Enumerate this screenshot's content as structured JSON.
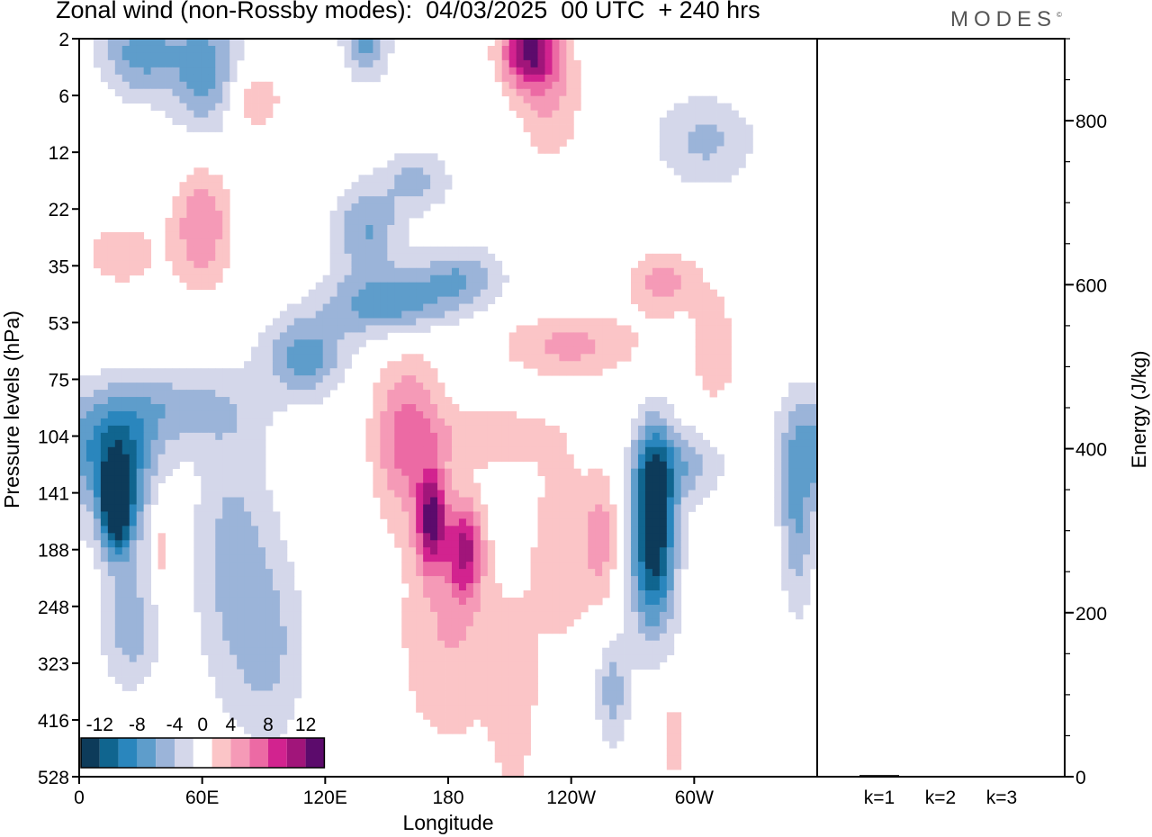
{
  "title": "Zonal wind (non-Rossby modes):  04/03/2025  00 UTC  + 240 hrs",
  "logo": "MODES",
  "logo_mark": "©",
  "chart_data": [
    {
      "type": "heatmap",
      "xlabel": "Longitude",
      "ylabel": "Pressure levels (hPa)",
      "x_ticks": [
        "0",
        "60E",
        "120E",
        "180",
        "120W",
        "60W"
      ],
      "x_tick_lon": [
        0,
        60,
        120,
        180,
        240,
        300
      ],
      "x_range": [
        0,
        360
      ],
      "y_ticks": [
        "2",
        "6",
        "12",
        "22",
        "35",
        "53",
        "75",
        "104",
        "141",
        "188",
        "248",
        "323",
        "416",
        "528"
      ],
      "colorbar": {
        "labels": [
          "-12",
          "-8",
          "-4",
          "0",
          "4",
          "8",
          "12"
        ],
        "levels": [
          -14,
          -12,
          -10,
          -8,
          -6,
          -4,
          -2,
          2,
          4,
          6,
          8,
          10,
          12,
          14
        ],
        "colors": [
          "#0d3b5a",
          "#10658f",
          "#2a86bd",
          "#5e9dcb",
          "#9bb4d9",
          "#d4d7ea",
          "#ffffff",
          "#fbc5c7",
          "#f59ab7",
          "#ec6aa4",
          "#d2238f",
          "#a1157a",
          "#5c0b6c"
        ]
      },
      "field": [
        {
          "lon": 20,
          "lev": 8.0,
          "v": -7,
          "sx": 10,
          "sy": 0.9
        },
        {
          "lon": 18,
          "lev": 8.3,
          "v": -11,
          "sx": 5,
          "sy": 0.5
        },
        {
          "lon": 12,
          "lev": 7.3,
          "v": -6,
          "sx": 18,
          "sy": 0.6
        },
        {
          "lon": 40,
          "lev": 6.5,
          "v": -5,
          "sx": 30,
          "sy": 0.5
        },
        {
          "lon": 25,
          "lev": 10.4,
          "v": -5,
          "sx": 10,
          "sy": 0.8
        },
        {
          "lon": 75,
          "lev": 9.2,
          "v": -4.8,
          "sx": 14,
          "sy": 1.8
        },
        {
          "lon": 95,
          "lev": 10.8,
          "v": -3.6,
          "sx": 12,
          "sy": 1.3
        },
        {
          "lon": 110,
          "lev": 5.6,
          "v": -7,
          "sx": 14,
          "sy": 0.5
        },
        {
          "lon": 150,
          "lev": 4.7,
          "v": -7,
          "sx": 22,
          "sy": 0.4
        },
        {
          "lon": 185,
          "lev": 4.2,
          "v": -5.5,
          "sx": 16,
          "sy": 0.4
        },
        {
          "lon": 140,
          "lev": 3.4,
          "v": -6,
          "sx": 12,
          "sy": 0.6
        },
        {
          "lon": 165,
          "lev": 2.5,
          "v": -4.5,
          "sx": 12,
          "sy": 0.4
        },
        {
          "lon": 280,
          "lev": 8.2,
          "v": -13,
          "sx": 7,
          "sy": 1.0
        },
        {
          "lon": 280,
          "lev": 9.6,
          "v": -6,
          "sx": 9,
          "sy": 1.0
        },
        {
          "lon": 295,
          "lev": 7.5,
          "v": -5,
          "sx": 14,
          "sy": 0.5
        },
        {
          "lon": 260,
          "lev": 11.5,
          "v": -5,
          "sx": 6,
          "sy": 0.7
        },
        {
          "lon": 30,
          "lev": 0.2,
          "v": -7,
          "sx": 14,
          "sy": 0.6
        },
        {
          "lon": 62,
          "lev": 0.6,
          "v": -7,
          "sx": 12,
          "sy": 0.8
        },
        {
          "lon": 140,
          "lev": 0.0,
          "v": -7,
          "sx": 8,
          "sy": 0.5
        },
        {
          "lon": 305,
          "lev": 1.8,
          "v": -4.5,
          "sx": 18,
          "sy": 0.6
        },
        {
          "lon": 350,
          "lev": 8.4,
          "v": -6,
          "sx": 6,
          "sy": 1.2
        },
        {
          "lon": 160,
          "lev": 7.0,
          "v": 7,
          "sx": 12,
          "sy": 1.0
        },
        {
          "lon": 172,
          "lev": 8.5,
          "v": 11,
          "sx": 5,
          "sy": 0.6
        },
        {
          "lon": 188,
          "lev": 9.0,
          "v": 9,
          "sx": 6,
          "sy": 0.6
        },
        {
          "lon": 180,
          "lev": 10.5,
          "v": 4,
          "sx": 18,
          "sy": 1.5
        },
        {
          "lon": 212,
          "lev": 11.8,
          "v": 3.2,
          "sx": 8,
          "sy": 1.2
        },
        {
          "lon": 235,
          "lev": 9.0,
          "v": 3.2,
          "sx": 12,
          "sy": 1.5
        },
        {
          "lon": 200,
          "lev": 7.0,
          "v": 3.5,
          "sx": 20,
          "sy": 0.4
        },
        {
          "lon": 240,
          "lev": 5.4,
          "v": 4.5,
          "sx": 25,
          "sy": 0.4
        },
        {
          "lon": 285,
          "lev": 4.3,
          "v": 5,
          "sx": 12,
          "sy": 0.4
        },
        {
          "lon": 310,
          "lev": 5.5,
          "v": 3.5,
          "sx": 8,
          "sy": 0.8
        },
        {
          "lon": 60,
          "lev": 3.3,
          "v": 6,
          "sx": 10,
          "sy": 0.8
        },
        {
          "lon": 20,
          "lev": 3.8,
          "v": 3,
          "sx": 15,
          "sy": 0.5
        },
        {
          "lon": 85,
          "lev": 1.1,
          "v": 4,
          "sx": 10,
          "sy": 0.4
        },
        {
          "lon": 220,
          "lev": 0.2,
          "v": 12,
          "sx": 10,
          "sy": 0.5
        },
        {
          "lon": 230,
          "lev": 1.2,
          "v": 3.5,
          "sx": 12,
          "sy": 0.8
        },
        {
          "lon": 290,
          "lev": 12.3,
          "v": 3.2,
          "sx": 5,
          "sy": 0.6
        },
        {
          "lon": 40,
          "lev": 9.0,
          "v": 4,
          "sx": 3,
          "sy": 0.5
        },
        {
          "lon": 255,
          "lev": 8.8,
          "v": 4.5,
          "sx": 6,
          "sy": 0.8
        }
      ]
    },
    {
      "type": "bar",
      "categories": [
        "k=1",
        "k=2",
        "k=3"
      ],
      "values": [
        2,
        1,
        1
      ],
      "ylabel": "Energy (J/kg)",
      "ylim": [
        0,
        900
      ],
      "y_ticks": [
        "0",
        "200",
        "400",
        "600",
        "800"
      ]
    }
  ]
}
